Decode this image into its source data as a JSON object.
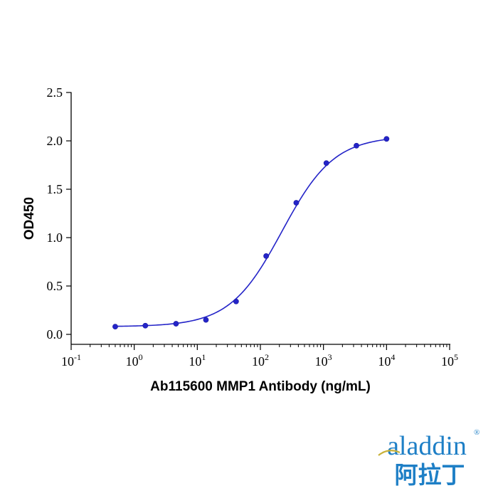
{
  "chart_data": {
    "type": "scatter",
    "x_scale": "log10",
    "xlabel": "Ab115600 MMP1 Antibody (ng/mL)",
    "ylabel": "OD450",
    "xlim": [
      0.1,
      100000
    ],
    "ylim": [
      0,
      2.5
    ],
    "x_ticks": [
      0.1,
      1,
      10,
      100,
      1000,
      10000,
      100000
    ],
    "x_tick_labels": [
      {
        "base": "10",
        "exp": "-1"
      },
      {
        "base": "10",
        "exp": "0"
      },
      {
        "base": "10",
        "exp": "1"
      },
      {
        "base": "10",
        "exp": "2"
      },
      {
        "base": "10",
        "exp": "3"
      },
      {
        "base": "10",
        "exp": "4"
      },
      {
        "base": "10",
        "exp": "5"
      }
    ],
    "y_ticks": [
      0,
      0.5,
      1,
      1.5,
      2,
      2.5
    ],
    "y_tick_labels": [
      "0.0",
      "0.5",
      "1.0",
      "1.5",
      "2.0",
      "2.5"
    ],
    "grid": false,
    "series": [
      {
        "x": [
          0.5,
          1.5,
          4.6,
          13.7,
          41.2,
          123.5,
          370.4,
          1111,
          3333,
          10000
        ],
        "y": [
          0.08,
          0.09,
          0.11,
          0.15,
          0.34,
          0.81,
          1.36,
          1.77,
          1.95,
          2.02
        ]
      }
    ],
    "fit_curve": {
      "model": "4PL",
      "bottom": 0.08,
      "top": 2.05,
      "ec50": 220,
      "hill": 1.05
    },
    "colors": {
      "series": "#2424c8",
      "axis": "#000000"
    }
  },
  "logo": {
    "latin": "aladdin",
    "cjk": "阿拉丁",
    "mark": "®",
    "color": "#1e7fc6",
    "accent": "#c9b23a"
  }
}
